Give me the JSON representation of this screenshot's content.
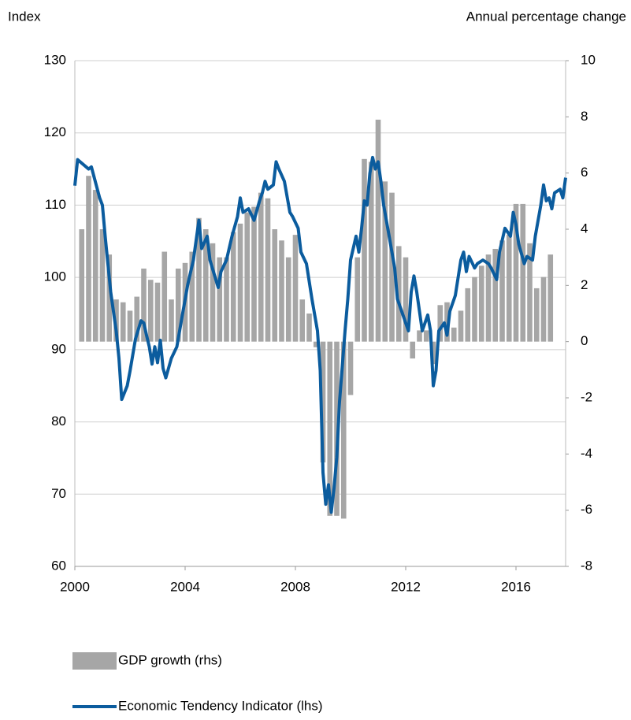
{
  "chart_data": {
    "type": "combo",
    "ylabel": "Index",
    "y2label": "Annual percentage change",
    "xlim": [
      2000,
      2017.8
    ],
    "xticks": [
      2000,
      2004,
      2008,
      2012,
      2016
    ],
    "ylim": [
      60,
      130
    ],
    "yticks": [
      60,
      70,
      80,
      90,
      100,
      110,
      120,
      130
    ],
    "y2lim": [
      -8,
      10
    ],
    "y2ticks": [
      -8,
      -6,
      -4,
      -2,
      0,
      2,
      4,
      6,
      8,
      10
    ],
    "grid": true,
    "series": [
      {
        "name": "GDP growth (rhs)",
        "type": "bar",
        "axis": "y2",
        "color": "#a6a6a6",
        "x": [
          2000.25,
          2000.5,
          2000.75,
          2001,
          2001.25,
          2001.5,
          2001.75,
          2002,
          2002.25,
          2002.5,
          2002.75,
          2003,
          2003.25,
          2003.5,
          2003.75,
          2004,
          2004.25,
          2004.5,
          2004.75,
          2005,
          2005.25,
          2005.5,
          2005.75,
          2006,
          2006.25,
          2006.5,
          2006.75,
          2007,
          2007.25,
          2007.5,
          2007.75,
          2008,
          2008.25,
          2008.5,
          2008.75,
          2009,
          2009.25,
          2009.5,
          2009.75,
          2010,
          2010.25,
          2010.5,
          2010.75,
          2011,
          2011.25,
          2011.5,
          2011.75,
          2012,
          2012.25,
          2012.5,
          2012.75,
          2013,
          2013.25,
          2013.5,
          2013.75,
          2014,
          2014.25,
          2014.5,
          2014.75,
          2015,
          2015.25,
          2015.5,
          2015.75,
          2016,
          2016.25,
          2016.5,
          2016.75,
          2017,
          2017.25
        ],
        "values": [
          4.0,
          5.9,
          5.4,
          4.0,
          3.1,
          1.5,
          1.4,
          1.1,
          1.6,
          2.6,
          2.2,
          2.1,
          3.2,
          1.5,
          2.6,
          2.8,
          3.2,
          4.4,
          4.0,
          3.5,
          3.0,
          3.0,
          3.9,
          4.2,
          4.6,
          4.8,
          5.3,
          5.1,
          4.0,
          3.6,
          3.0,
          3.8,
          1.5,
          1.0,
          -0.2,
          -4.3,
          -6.2,
          -6.2,
          -6.3,
          -1.9,
          3.0,
          6.5,
          6.4,
          7.9,
          5.7,
          5.3,
          3.4,
          3.0,
          -0.6,
          0.4,
          0.4,
          -0.8,
          1.3,
          1.4,
          0.5,
          1.1,
          1.9,
          2.3,
          2.7,
          3.1,
          3.3,
          3.6,
          3.8,
          4.9,
          4.9,
          3.5,
          1.9,
          2.3,
          3.1
        ]
      },
      {
        "name": "Economic Tendency Indicator (lhs)",
        "type": "line",
        "axis": "y",
        "color": "#0b5c9e",
        "x": [
          2000,
          2000.1,
          2000.5,
          2000.6,
          2000.9,
          2001,
          2001.1,
          2001.3,
          2001.5,
          2001.6,
          2001.7,
          2001.9,
          2002,
          2002.2,
          2002.4,
          2002.5,
          2002.6,
          2002.7,
          2002.8,
          2002.9,
          2003,
          2003.1,
          2003.2,
          2003.3,
          2003.5,
          2003.7,
          2003.9,
          2004.1,
          2004.3,
          2004.5,
          2004.6,
          2004.8,
          2004.9,
          2005.2,
          2005.3,
          2005.5,
          2005.7,
          2005.9,
          2006,
          2006.1,
          2006.3,
          2006.5,
          2006.7,
          2006.8,
          2006.9,
          2007,
          2007.2,
          2007.3,
          2007.4,
          2007.6,
          2007.8,
          2007.9,
          2008.1,
          2008.2,
          2008.4,
          2008.6,
          2008.8,
          2008.9,
          2009,
          2009.1,
          2009.2,
          2009.3,
          2009.4,
          2009.5,
          2009.6,
          2009.8,
          2009.9,
          2010,
          2010.2,
          2010.3,
          2010.4,
          2010.5,
          2010.6,
          2010.7,
          2010.8,
          2010.9,
          2011,
          2011.1,
          2011.2,
          2011.4,
          2011.6,
          2011.7,
          2011.9,
          2012,
          2012.1,
          2012.2,
          2012.3,
          2012.4,
          2012.6,
          2012.8,
          2012.9,
          2013,
          2013.1,
          2013.2,
          2013.4,
          2013.5,
          2013.6,
          2013.8,
          2014,
          2014.1,
          2014.2,
          2014.3,
          2014.5,
          2014.6,
          2014.8,
          2015,
          2015.1,
          2015.3,
          2015.4,
          2015.6,
          2015.8,
          2015.9,
          2016,
          2016.1,
          2016.3,
          2016.4,
          2016.6,
          2016.7,
          2016.9,
          2017,
          2017.1,
          2017.2,
          2017.3,
          2017.4,
          2017.6,
          2017.7,
          2017.8
        ],
        "values": [
          112.7,
          116.3,
          115,
          115.3,
          111,
          110,
          105.7,
          98,
          92.6,
          88.8,
          83.1,
          85,
          87,
          91.5,
          94,
          93.7,
          92,
          90.4,
          88,
          90.4,
          88.2,
          91.3,
          87.4,
          86.1,
          88.8,
          90.4,
          94.8,
          99.1,
          102.4,
          107.9,
          104,
          105.7,
          102.4,
          98.6,
          100.8,
          102.4,
          105.7,
          108.4,
          111,
          109,
          109.5,
          107.9,
          110.6,
          111.7,
          113.3,
          112.2,
          112.8,
          116,
          115,
          113.3,
          109,
          108.4,
          106.8,
          103.5,
          101.9,
          97,
          92.6,
          87.1,
          73,
          68.6,
          71.3,
          67.5,
          70.8,
          75.1,
          82.8,
          92.6,
          97,
          102.4,
          105.7,
          103.5,
          106.8,
          110.6,
          110,
          114.4,
          116.6,
          115,
          116,
          113.3,
          110,
          105.7,
          101.3,
          97,
          94.8,
          93.7,
          92.6,
          98,
          100.2,
          98,
          92.6,
          94.8,
          92.6,
          85,
          87.1,
          92.6,
          93.7,
          92,
          95.3,
          97.5,
          102.4,
          103.5,
          100.8,
          102.9,
          101.3,
          101.9,
          102.4,
          101.9,
          101.3,
          99.7,
          103.5,
          106.8,
          105.7,
          109,
          107.3,
          104.6,
          101.9,
          102.9,
          102.4,
          105.7,
          110,
          112.8,
          110.6,
          111,
          109.5,
          111.7,
          112.2,
          111,
          113.8
        ]
      }
    ]
  }
}
